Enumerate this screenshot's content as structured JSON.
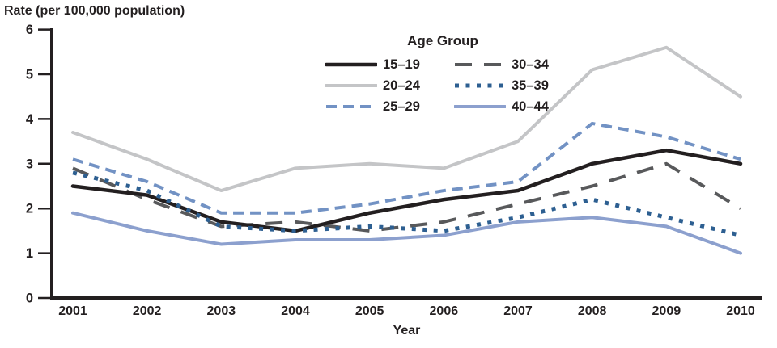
{
  "chart_data": {
    "type": "line",
    "title": "Rate (per 100,000 population)",
    "xlabel": "Year",
    "ylabel": "",
    "legend_title": "Age Group",
    "legend_position": "top-center",
    "grid": false,
    "x": [
      2001,
      2002,
      2003,
      2004,
      2005,
      2006,
      2007,
      2008,
      2009,
      2010
    ],
    "ylim": [
      0,
      6
    ],
    "yticks": [
      0,
      1,
      2,
      3,
      4,
      5,
      6
    ],
    "axis_color": "#231f20",
    "series": [
      {
        "name": "15–19",
        "color": "#231f20",
        "style": "solid",
        "width": 4.5,
        "values": [
          2.5,
          2.3,
          1.7,
          1.5,
          1.9,
          2.2,
          2.4,
          3.0,
          3.3,
          3.0
        ]
      },
      {
        "name": "20–24",
        "color": "#c4c5c7",
        "style": "solid",
        "width": 4,
        "values": [
          3.7,
          3.1,
          2.4,
          2.9,
          3.0,
          2.9,
          3.5,
          5.1,
          5.6,
          4.5
        ]
      },
      {
        "name": "25–29",
        "color": "#7292c4",
        "style": "dashed",
        "width": 4,
        "values": [
          3.1,
          2.6,
          1.9,
          1.9,
          2.1,
          2.4,
          2.6,
          3.9,
          3.6,
          3.1
        ]
      },
      {
        "name": "30–34",
        "color": "#58595b",
        "style": "longdash",
        "width": 4,
        "values": [
          2.9,
          2.2,
          1.6,
          1.7,
          1.5,
          1.7,
          2.1,
          2.5,
          3.0,
          2.0
        ]
      },
      {
        "name": "35–39",
        "color": "#2d5f91",
        "style": "dotted",
        "width": 5,
        "values": [
          2.8,
          2.4,
          1.6,
          1.5,
          1.6,
          1.5,
          1.8,
          2.2,
          1.8,
          1.4
        ]
      },
      {
        "name": "40–44",
        "color": "#8ca0ce",
        "style": "solid",
        "width": 4,
        "values": [
          1.9,
          1.5,
          1.2,
          1.3,
          1.3,
          1.4,
          1.7,
          1.8,
          1.6,
          1.0
        ]
      }
    ]
  }
}
